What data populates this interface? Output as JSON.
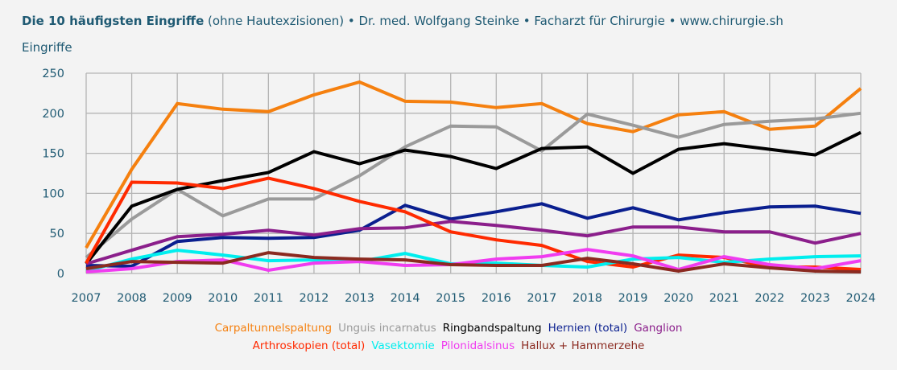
{
  "chart_data": {
    "type": "line",
    "title": {
      "bold": "Die 10 häufigsten Eingriffe",
      "rest": "(ohne Hautexzisionen) • Dr. med. Wolfgang Steinke • Facharzt für Chirurgie • www.chirurgie.sh"
    },
    "ylabel": "Eingriffe",
    "xlabel": "",
    "ylim": [
      0,
      250
    ],
    "yticks": [
      0,
      50,
      100,
      150,
      200,
      250
    ],
    "grid": true,
    "legend_position": "bottom",
    "x": [
      "2007",
      "2008",
      "2009",
      "2010",
      "2011",
      "2012",
      "2013",
      "2014",
      "2015",
      "2016",
      "2017",
      "2018",
      "2019",
      "2020",
      "2021",
      "2022",
      "2023",
      "2024"
    ],
    "series": [
      {
        "name": "Carpaltunnelspaltung",
        "color": "#f5800f",
        "values": [
          32,
          130,
          212,
          205,
          202,
          223,
          239,
          215,
          214,
          207,
          212,
          187,
          177,
          198,
          202,
          180,
          184,
          231
        ]
      },
      {
        "name": "Unguis incarnatus",
        "color": "#9a9a9a",
        "values": [
          20,
          68,
          105,
          72,
          93,
          93,
          122,
          158,
          184,
          183,
          153,
          199,
          185,
          170,
          186,
          190,
          193,
          200
        ]
      },
      {
        "name": "Ringbandspaltung",
        "color": "#000000",
        "values": [
          12,
          84,
          105,
          116,
          126,
          152,
          137,
          154,
          146,
          131,
          156,
          158,
          125,
          155,
          162,
          155,
          148,
          176
        ]
      },
      {
        "name": "Hernien (total)",
        "color": "#0a1f8f",
        "values": [
          10,
          9,
          40,
          45,
          44,
          45,
          54,
          85,
          68,
          77,
          87,
          69,
          82,
          67,
          76,
          83,
          84,
          75
        ]
      },
      {
        "name": "Ganglion",
        "color": "#8b1f8b",
        "values": [
          12,
          29,
          46,
          49,
          54,
          48,
          56,
          57,
          65,
          60,
          54,
          47,
          58,
          58,
          52,
          52,
          38,
          50
        ]
      },
      {
        "name": "Arthroskopien (total)",
        "color": "#ff2a00",
        "values": [
          13,
          114,
          113,
          106,
          119,
          106,
          90,
          77,
          52,
          42,
          35,
          15,
          8,
          23,
          20,
          8,
          8,
          5
        ]
      },
      {
        "name": "Vasektomie",
        "color": "#00eeee",
        "values": [
          3,
          18,
          29,
          23,
          16,
          17,
          15,
          25,
          12,
          13,
          10,
          8,
          18,
          20,
          14,
          18,
          21,
          22
        ]
      },
      {
        "name": "Pilonidalsinus",
        "color": "#f03cf0",
        "values": [
          2,
          6,
          15,
          17,
          4,
          13,
          15,
          10,
          11,
          18,
          21,
          30,
          22,
          5,
          21,
          11,
          6,
          16
        ]
      },
      {
        "name": "Hallux + Hammerzehe",
        "color": "#8b2a20",
        "values": [
          6,
          15,
          14,
          13,
          26,
          20,
          18,
          17,
          11,
          10,
          10,
          19,
          12,
          3,
          12,
          7,
          3,
          2
        ]
      }
    ]
  }
}
